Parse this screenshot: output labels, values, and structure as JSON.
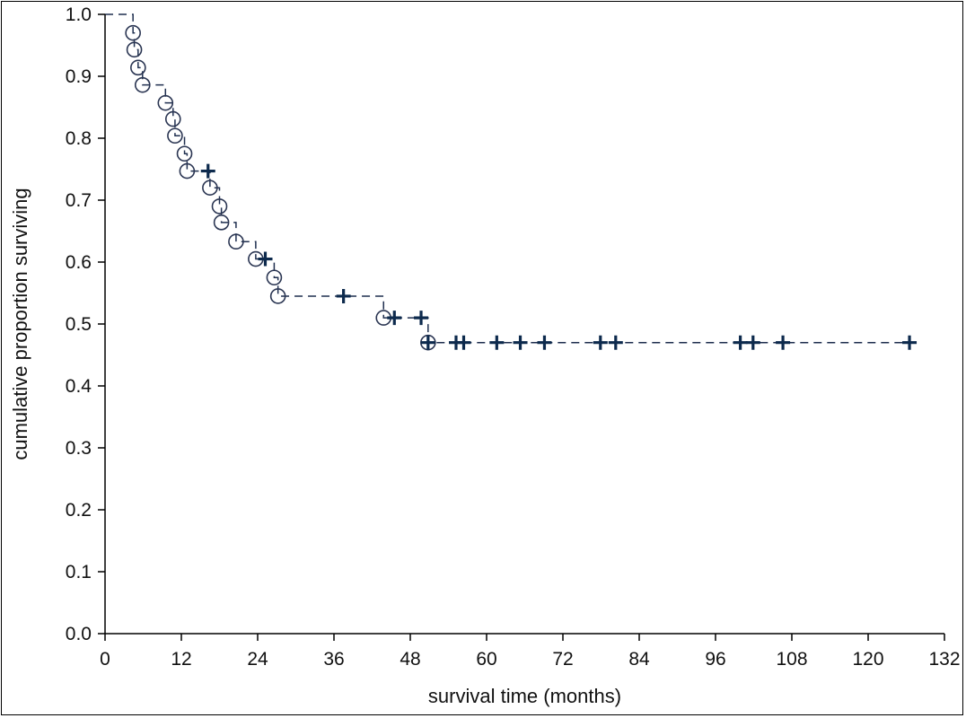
{
  "chart_data": {
    "type": "line",
    "title": "",
    "xlabel": "survival time (months)",
    "ylabel": "cumulative proportion surviving",
    "xlim": [
      0,
      132
    ],
    "ylim": [
      0,
      1
    ],
    "xticks": [
      "0",
      "12",
      "24",
      "36",
      "48",
      "60",
      "72",
      "84",
      "96",
      "108",
      "120",
      "132"
    ],
    "yticks": [
      "0.0",
      "0.1",
      "0.2",
      "0.3",
      "0.4",
      "0.5",
      "0.6",
      "0.7",
      "0.8",
      "0.9",
      "1.0"
    ],
    "grid": false,
    "colors": {
      "line": "#1f2f4f",
      "censor": "#0d2a4d",
      "event": "#2a3552",
      "axis": "#000000"
    },
    "series": [
      {
        "step_points": [
          {
            "x": 0,
            "y": 1.0
          },
          {
            "x": 4.4,
            "y": 0.97
          },
          {
            "x": 4.6,
            "y": 0.943
          },
          {
            "x": 5.2,
            "y": 0.914
          },
          {
            "x": 5.9,
            "y": 0.886
          },
          {
            "x": 9.5,
            "y": 0.857
          },
          {
            "x": 10.7,
            "y": 0.831
          },
          {
            "x": 11.0,
            "y": 0.804
          },
          {
            "x": 12.5,
            "y": 0.775
          },
          {
            "x": 12.9,
            "y": 0.747
          },
          {
            "x": 16.5,
            "y": 0.72
          },
          {
            "x": 18.0,
            "y": 0.69
          },
          {
            "x": 18.3,
            "y": 0.664
          },
          {
            "x": 20.6,
            "y": 0.633
          },
          {
            "x": 23.7,
            "y": 0.605
          },
          {
            "x": 26.6,
            "y": 0.575
          },
          {
            "x": 27.2,
            "y": 0.545
          },
          {
            "x": 43.8,
            "y": 0.51
          },
          {
            "x": 50.8,
            "y": 0.47
          }
        ],
        "end_x": 127,
        "censored": [
          {
            "x": 16.2,
            "y": 0.747
          },
          {
            "x": 25.2,
            "y": 0.605
          },
          {
            "x": 37.5,
            "y": 0.545
          },
          {
            "x": 45.5,
            "y": 0.51
          },
          {
            "x": 49.7,
            "y": 0.51
          },
          {
            "x": 50.8,
            "y": 0.47
          },
          {
            "x": 55.2,
            "y": 0.47
          },
          {
            "x": 56.4,
            "y": 0.47
          },
          {
            "x": 61.6,
            "y": 0.47
          },
          {
            "x": 65.3,
            "y": 0.47
          },
          {
            "x": 69.1,
            "y": 0.47
          },
          {
            "x": 77.9,
            "y": 0.47
          },
          {
            "x": 80.3,
            "y": 0.47
          },
          {
            "x": 99.9,
            "y": 0.47
          },
          {
            "x": 101.9,
            "y": 0.47
          },
          {
            "x": 106.6,
            "y": 0.47
          },
          {
            "x": 126.5,
            "y": 0.47
          }
        ]
      }
    ]
  }
}
